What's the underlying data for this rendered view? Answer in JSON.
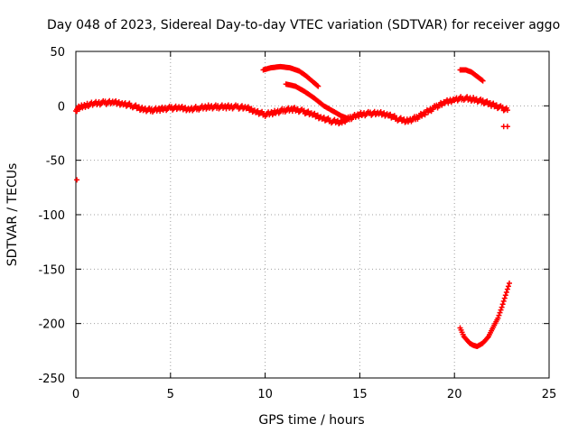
{
  "chart_data": {
    "type": "scatter",
    "title": "Day 048 of 2023, Sidereal Day-to-day VTEC variation (SDTVAR) for receiver aggo",
    "xlabel": "GPS time / hours",
    "ylabel": "SDTVAR / TECUs",
    "xlim": [
      0,
      25
    ],
    "ylim": [
      -250,
      50
    ],
    "xticks": [
      0,
      5,
      10,
      15,
      20,
      25
    ],
    "yticks": [
      -250,
      -200,
      -150,
      -100,
      -50,
      0,
      50
    ],
    "grid": true,
    "marker": "+",
    "series_color": "#ff0000",
    "series": [
      {
        "name": "main",
        "x": [
          0.0,
          0.3,
          0.6,
          1.0,
          1.5,
          2.0,
          2.5,
          3.0,
          3.5,
          4.0,
          4.5,
          5.0,
          5.5,
          6.0,
          6.5,
          7.0,
          7.5,
          8.0,
          8.5,
          9.0,
          9.5,
          10.0,
          10.5,
          11.0,
          11.5,
          12.0,
          12.5,
          13.0,
          13.5,
          14.0,
          14.5,
          15.0,
          15.5,
          16.0,
          16.5,
          17.0,
          17.5,
          18.0,
          18.5,
          19.0,
          19.5,
          20.0,
          20.5,
          21.0,
          21.5,
          22.0,
          22.5,
          22.8
        ],
        "y": [
          -3,
          -1,
          1,
          2,
          3,
          3,
          2,
          0,
          -3,
          -4,
          -3,
          -2,
          -2,
          -3,
          -2,
          -1,
          -1,
          -1,
          -1,
          -2,
          -5,
          -8,
          -6,
          -4,
          -3,
          -5,
          -8,
          -11,
          -14,
          -15,
          -11,
          -8,
          -7,
          -7,
          -8,
          -12,
          -14,
          -11,
          -6,
          -1,
          3,
          6,
          7,
          6,
          4,
          1,
          -2,
          -4
        ]
      },
      {
        "name": "arc-upper-1",
        "x": [
          9.9,
          10.3,
          10.8,
          11.3,
          11.8,
          12.2,
          12.6,
          12.8
        ],
        "y": [
          33,
          35,
          36,
          35,
          32,
          27,
          21,
          18
        ]
      },
      {
        "name": "arc-upper-2",
        "x": [
          11.1,
          11.6,
          12.1,
          12.6,
          13.1,
          13.6,
          14.0,
          14.4
        ],
        "y": [
          20,
          18,
          13,
          7,
          0,
          -5,
          -9,
          -12
        ]
      },
      {
        "name": "arc-upper-3",
        "x": [
          20.3,
          20.6,
          20.9,
          21.2,
          21.5
        ],
        "y": [
          33,
          33,
          31,
          27,
          23
        ]
      },
      {
        "name": "isolated",
        "x": [
          0.05,
          0.05,
          22.6,
          22.8
        ],
        "y": [
          -5,
          -68,
          -19,
          -19
        ]
      },
      {
        "name": "deep-dip",
        "x": [
          20.3,
          20.5,
          20.8,
          21.0,
          21.2,
          21.5,
          21.8,
          22.0,
          22.3,
          22.5,
          22.7,
          22.9
        ],
        "y": [
          -204,
          -212,
          -218,
          -220,
          -221,
          -218,
          -212,
          -205,
          -195,
          -185,
          -174,
          -163
        ]
      }
    ]
  }
}
